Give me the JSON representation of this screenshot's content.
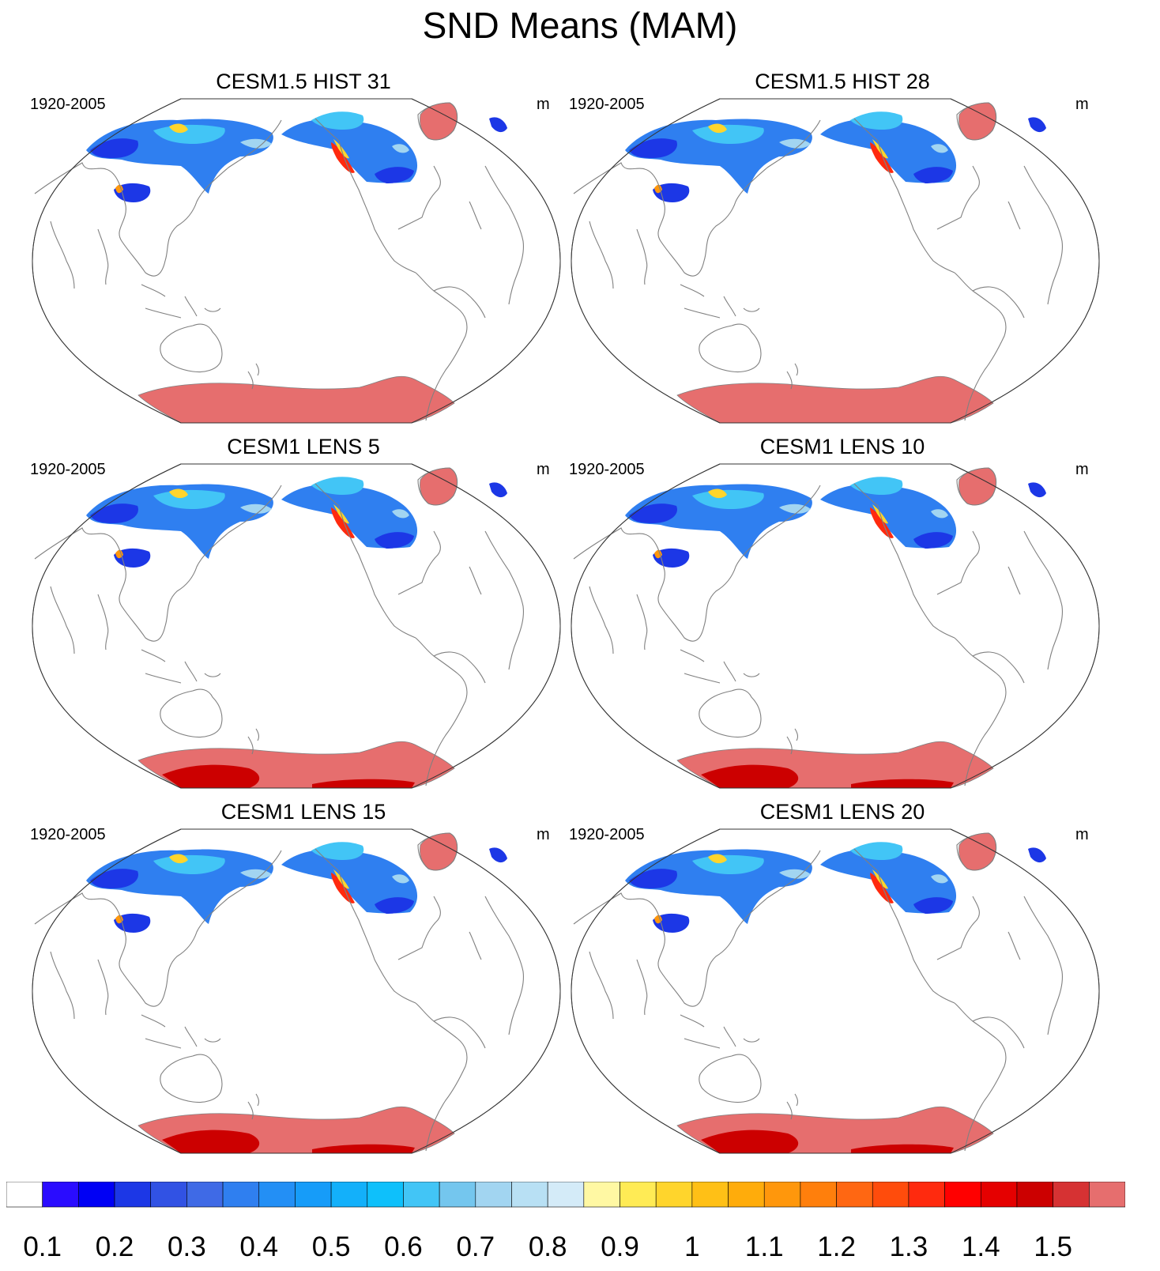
{
  "title": "SND Means (MAM)",
  "panels": [
    {
      "title": "CESM1.5 HIST 31",
      "years": "1920-2005",
      "units": "m",
      "antarctic_deep_core": false
    },
    {
      "title": "CESM1.5 HIST 28",
      "years": "1920-2005",
      "units": "m",
      "antarctic_deep_core": false
    },
    {
      "title": "CESM1 LENS 5",
      "years": "1920-2005",
      "units": "m",
      "antarctic_deep_core": true
    },
    {
      "title": "CESM1 LENS 10",
      "years": "1920-2005",
      "units": "m",
      "antarctic_deep_core": true
    },
    {
      "title": "CESM1 LENS 15",
      "years": "1920-2005",
      "units": "m",
      "antarctic_deep_core": true
    },
    {
      "title": "CESM1 LENS 20",
      "years": "1920-2005",
      "units": "m",
      "antarctic_deep_core": true
    }
  ],
  "colorbar": {
    "colors": [
      "#ffffff",
      "#2a0cff",
      "#0000f5",
      "#1c37e6",
      "#3152e4",
      "#3f6ae6",
      "#2f7ff0",
      "#238ff5",
      "#169cf9",
      "#13b0fa",
      "#0ec0fb",
      "#42c5f6",
      "#74c6ee",
      "#a2d5f1",
      "#b8e0f4",
      "#d4ebf8",
      "#fff8a3",
      "#ffeb55",
      "#ffd52c",
      "#ffc016",
      "#ffac0b",
      "#ff970c",
      "#ff7f0c",
      "#ff6712",
      "#ff4c0c",
      "#ff2a0e",
      "#ff0000",
      "#e50000",
      "#cc0000",
      "#d63233",
      "#e66e6e"
    ],
    "labels": [
      "0.1",
      "0.2",
      "0.3",
      "0.4",
      "0.5",
      "0.6",
      "0.7",
      "0.8",
      "0.9",
      "1",
      "1.1",
      "1.2",
      "1.3",
      "1.4",
      "1.5"
    ]
  },
  "snow_colors": {
    "deep_blue": "#1c37e6",
    "mid_blue": "#2f7ff0",
    "light_blue": "#42c5f6",
    "pale_blue": "#a2d5f1",
    "yellow": "#ffd52c",
    "orange": "#ff970c",
    "red": "#ff2a0e",
    "ice": "#e66e6e",
    "deep_ice": "#cc0000",
    "coast": "#808080"
  }
}
